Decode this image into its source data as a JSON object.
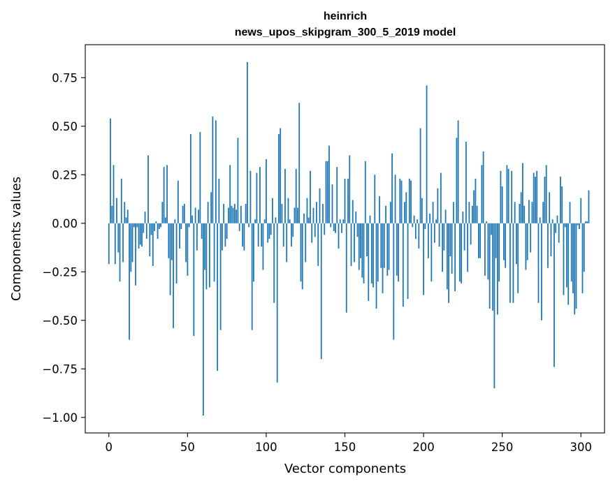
{
  "chart_data": {
    "type": "bar",
    "title": "heinrich",
    "subtitle": "news_upos_skipgram_300_5_2019 model",
    "xlabel": "Vector components",
    "ylabel": "Components values",
    "xlim": [
      -15,
      315
    ],
    "ylim": [
      -1.08,
      0.92
    ],
    "xticks": [
      0,
      50,
      100,
      150,
      200,
      250,
      300
    ],
    "yticks": [
      -1.0,
      -0.75,
      -0.5,
      -0.25,
      0.0,
      0.25,
      0.5,
      0.75
    ],
    "ytick_labels": [
      "−1.00",
      "−0.75",
      "−0.50",
      "−0.25",
      "0.00",
      "0.25",
      "0.50",
      "0.75"
    ],
    "grid": false,
    "bar_color": "#1f77b4",
    "values": [
      -0.21,
      0.54,
      0.09,
      0.3,
      -0.21,
      0.13,
      -0.15,
      -0.3,
      0.23,
      -0.2,
      0.11,
      0.03,
      0.07,
      -0.6,
      -0.25,
      -0.2,
      -0.02,
      -0.32,
      -0.02,
      -0.13,
      -0.11,
      -0.12,
      -0.05,
      0.06,
      -0.08,
      0.35,
      -0.17,
      -0.06,
      -0.22,
      -0.04,
      0.01,
      -0.08,
      -0.03,
      -0.02,
      0.11,
      0.29,
      0.03,
      0.3,
      -0.18,
      -0.37,
      -0.19,
      -0.54,
      0.02,
      -0.31,
      0.22,
      -0.13,
      -0.03,
      0.09,
      0.1,
      -0.2,
      -0.27,
      -0.02,
      0.46,
      0.04,
      -0.58,
      0.08,
      -0.14,
      0.07,
      0.47,
      -0.08,
      -0.99,
      -0.24,
      -0.34,
      0.11,
      -0.33,
      0.16,
      0.55,
      -0.3,
      0.53,
      -0.76,
      0.23,
      -0.55,
      -0.14,
      0.1,
      -0.12,
      -0.08,
      0.08,
      0.3,
      0.09,
      0.08,
      0.1,
      0.07,
      0.44,
      -0.04,
      0.09,
      -0.12,
      -0.14,
      0.1,
      0.83,
      -0.02,
      0.27,
      -0.55,
      -0.3,
      0.02,
      0.26,
      -0.12,
      0.29,
      -0.12,
      -0.24,
      0.02,
      0.33,
      -0.1,
      -0.08,
      -0.06,
      0.13,
      -0.41,
      0.03,
      -0.82,
      0.46,
      0.49,
      0.1,
      -0.12,
      0.28,
      -0.2,
      0.13,
      0.02,
      -0.12,
      -0.07,
      0.08,
      0.28,
      0.08,
      0.62,
      -0.3,
      -0.34,
      0.05,
      -0.2,
      0.13,
      0.03,
      0.27,
      -0.1,
      0.08,
      -0.07,
      0.11,
      -0.22,
      0.18,
      -0.7,
      0.1,
      -0.06,
      0.32,
      0.32,
      0.4,
      -0.02,
      0.2,
      -0.04,
      -0.05,
      0.29,
      -0.13,
      0.02,
      -0.05,
      0.02,
      0.23,
      -0.46,
      0.23,
      0.35,
      -0.22,
      0.12,
      -0.2,
      0.06,
      -0.07,
      -0.24,
      -0.18,
      -0.28,
      -0.31,
      0.32,
      -0.17,
      -0.4,
      0.04,
      -0.31,
      -0.33,
      0.25,
      -0.44,
      -0.3,
      0.14,
      -0.23,
      -0.36,
      -0.23,
      0.09,
      -0.27,
      -0.24,
      0.11,
      0.36,
      -0.6,
      0.25,
      -0.27,
      -0.3,
      0.23,
      0.22,
      -0.43,
      0.11,
      0.16,
      -0.39,
      0.23,
      0.22,
      -0.02,
      0.04,
      -0.08,
      0.02,
      -0.13,
      0.49,
      0.13,
      -0.37,
      -0.03,
      0.71,
      -0.18,
      0.05,
      -0.3,
      0.11,
      -0.1,
      0.02,
      0.18,
      -0.12,
      0.26,
      -0.25,
      -0.14,
      0.07,
      -0.34,
      -0.41,
      -0.17,
      -0.26,
      0.11,
      -0.35,
      0.44,
      0.53,
      -0.3,
      -0.31,
      0.06,
      -0.14,
      0.42,
      -0.25,
      0.11,
      -0.11,
      0.09,
      0.17,
      0.23,
      0.09,
      -0.18,
      -0.18,
      0.3,
      0.37,
      -0.27,
      0.01,
      -0.29,
      -0.44,
      -0.06,
      -0.45,
      -0.85,
      -0.18,
      -0.47,
      -0.3,
      0.27,
      0.19,
      -0.19,
      -0.23,
      0.3,
      0.28,
      -0.41,
      0.27,
      -0.41,
      0.11,
      -0.21,
      -0.36,
      0.1,
      0.16,
      0.31,
      0.09,
      -0.24,
      -0.19,
      0.12,
      -0.15,
      0.11,
      0.26,
      0.24,
      0.27,
      -0.41,
      0.03,
      -0.5,
      0.11,
      0.24,
      0.3,
      -0.23,
      0.16,
      -0.17,
      0.02,
      -0.74,
      -0.05,
      0.04,
      -0.1,
      0.24,
      0.19,
      -0.37,
      -0.02,
      -0.33,
      -0.42,
      0.11,
      -0.3,
      -0.36,
      -0.47,
      -0.44,
      -0.01,
      -0.03,
      0.13,
      -0.36,
      -0.25,
      0.01,
      0.01,
      0.17
    ]
  }
}
